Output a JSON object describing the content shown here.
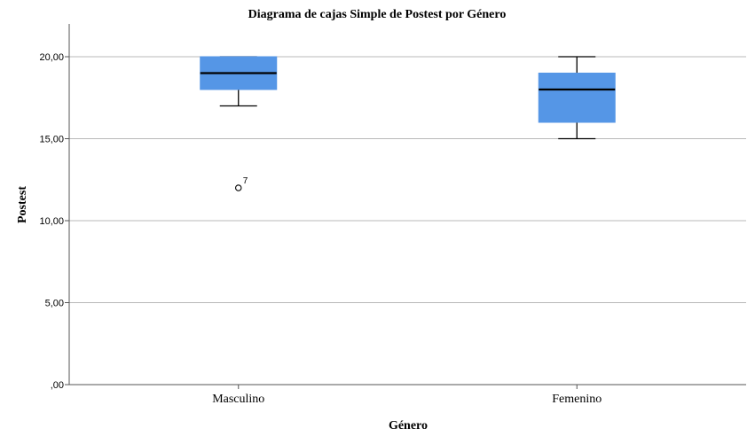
{
  "chart_data": {
    "type": "boxplot",
    "title": "Diagrama de cajas Simple de Postest por Género",
    "xlabel": "Género",
    "ylabel": "Postest",
    "ylim": [
      0,
      22
    ],
    "yticks": [
      0,
      5,
      10,
      15,
      20
    ],
    "ytick_labels": [
      ",00",
      "5,00",
      "10,00",
      "15,00",
      "20,00"
    ],
    "grid": "horizontal",
    "box_color": "#5596e6",
    "categories": [
      "Masculino",
      "Femenino"
    ],
    "boxes": [
      {
        "category": "Masculino",
        "whisker_low": 17,
        "q1": 18,
        "median": 19,
        "q3": 20,
        "whisker_high": 20,
        "outliers": [
          {
            "value": 12,
            "label": "7"
          }
        ]
      },
      {
        "category": "Femenino",
        "whisker_low": 15,
        "q1": 16,
        "median": 18,
        "q3": 19,
        "whisker_high": 20,
        "outliers": []
      }
    ]
  }
}
